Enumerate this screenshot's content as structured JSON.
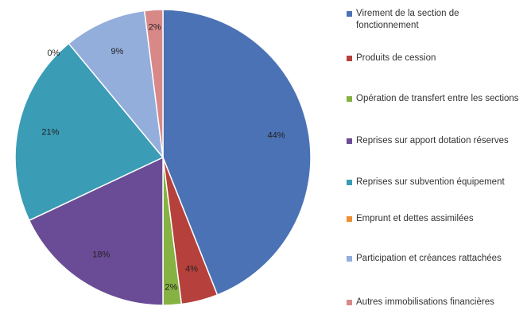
{
  "chart_data": {
    "type": "pie",
    "title": "",
    "legend_position": "right",
    "slices": [
      {
        "label": "Virement de la section de fonctionnement",
        "value": 44,
        "value_label": "44%",
        "color": "#4A72B4"
      },
      {
        "label": "Produits de cession",
        "value": 4,
        "value_label": "4%",
        "color": "#B6403C"
      },
      {
        "label": "Opération de transfert entre les sections",
        "value": 2,
        "value_label": "2%",
        "color": "#86B243"
      },
      {
        "label": "Reprises sur apport dotation réserves",
        "value": 18,
        "value_label": "18%",
        "color": "#6A4C96"
      },
      {
        "label": "Reprises sur subvention équipement",
        "value": 21,
        "value_label": "21%",
        "color": "#3B9CB6"
      },
      {
        "label": "Emprunt et dettes assimilées",
        "value": 0,
        "value_label": "0%",
        "color": "#EE8F33"
      },
      {
        "label": "Participation et créances rattachées",
        "value": 9,
        "value_label": "9%",
        "color": "#94AEDC"
      },
      {
        "label": "Autres immobilisations financières",
        "value": 2,
        "value_label": "2%",
        "color": "#D98888"
      }
    ]
  }
}
